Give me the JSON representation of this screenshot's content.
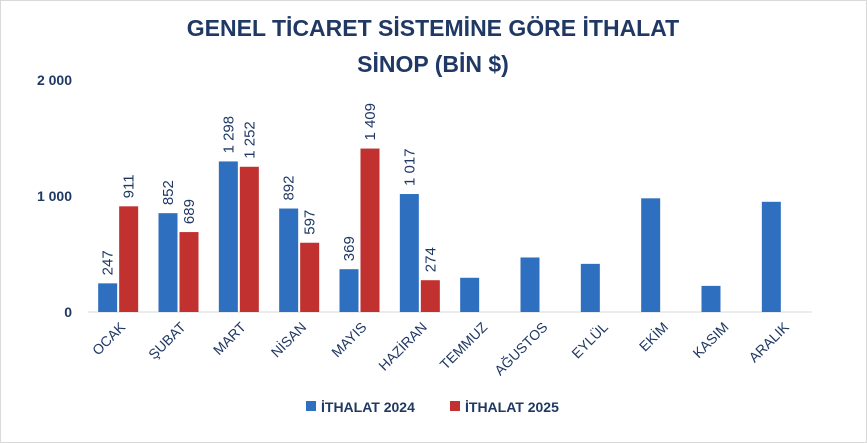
{
  "chart_data": {
    "type": "bar",
    "title": "GENEL TİCARET SİSTEMİNE GÖRE İTHALAT",
    "subtitle": "SİNOP (BİN $)",
    "categories": [
      "OCAK",
      "ŞUBAT",
      "MART",
      "NİSAN",
      "MAYIS",
      "HAZİRAN",
      "TEMMUZ",
      "AĞUSTOS",
      "EYLÜL",
      "EKİM",
      "KASIM",
      "ARALIK"
    ],
    "series": [
      {
        "name": "İTHALAT 2024",
        "color": "#2f6fc0",
        "values": [
          247,
          852,
          1298,
          892,
          369,
          1017,
          295,
          470,
          415,
          980,
          225,
          950
        ],
        "labels": [
          "247",
          "852",
          "1 298",
          "892",
          "369",
          "1 017",
          null,
          null,
          null,
          null,
          null,
          null
        ]
      },
      {
        "name": "İTHALAT 2025",
        "color": "#c0312f",
        "values": [
          911,
          689,
          1252,
          597,
          1409,
          274,
          null,
          null,
          null,
          null,
          null,
          null
        ],
        "labels": [
          "911",
          "689",
          "1 252",
          "597",
          "1 409",
          "274",
          null,
          null,
          null,
          null,
          null,
          null
        ]
      }
    ],
    "yticks": [
      0,
      1000,
      2000
    ],
    "ytick_labels": [
      "0",
      "1 000",
      "2 000"
    ],
    "ylim": [
      0,
      2000
    ],
    "grid": false,
    "legend": "bottom"
  }
}
